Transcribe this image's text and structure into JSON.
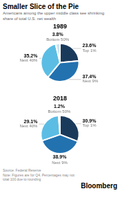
{
  "title": "Smaller Slice of the Pie",
  "subtitle": "Americans among the upper middle class see shrinking\nshare of total U.S. net wealth",
  "annotations": [
    "Source: Federal Reserve\nNote: Figures are for Q4. Percentages may not\ntotal 100 due to rounding",
    "Bloomberg"
  ],
  "chart_data": [
    {
      "type": "pie",
      "title": "1989",
      "categories": [
        "Top 1%",
        "Next 9%",
        "Next 40%",
        "Bottom 50%"
      ],
      "values": [
        23.6,
        37.4,
        35.2,
        3.8
      ],
      "value_labels": [
        "23.6%",
        "37.4%",
        "35.2%",
        "3.8%"
      ],
      "colors": [
        "#1a3a5c",
        "#2272b0",
        "#5bbde4",
        "#c8e6f5"
      ],
      "data_labels": true
    },
    {
      "type": "pie",
      "title": "2018",
      "categories": [
        "Top 1%",
        "Next 9%",
        "Next 40%",
        "Bottom 50%"
      ],
      "values": [
        30.9,
        38.9,
        29.1,
        1.2
      ],
      "value_labels": [
        "30.9%",
        "38.9%",
        "29.1%",
        "1.2%"
      ],
      "colors": [
        "#1a3a5c",
        "#2272b0",
        "#5bbde4",
        "#c8e6f5"
      ],
      "data_labels": true
    }
  ]
}
